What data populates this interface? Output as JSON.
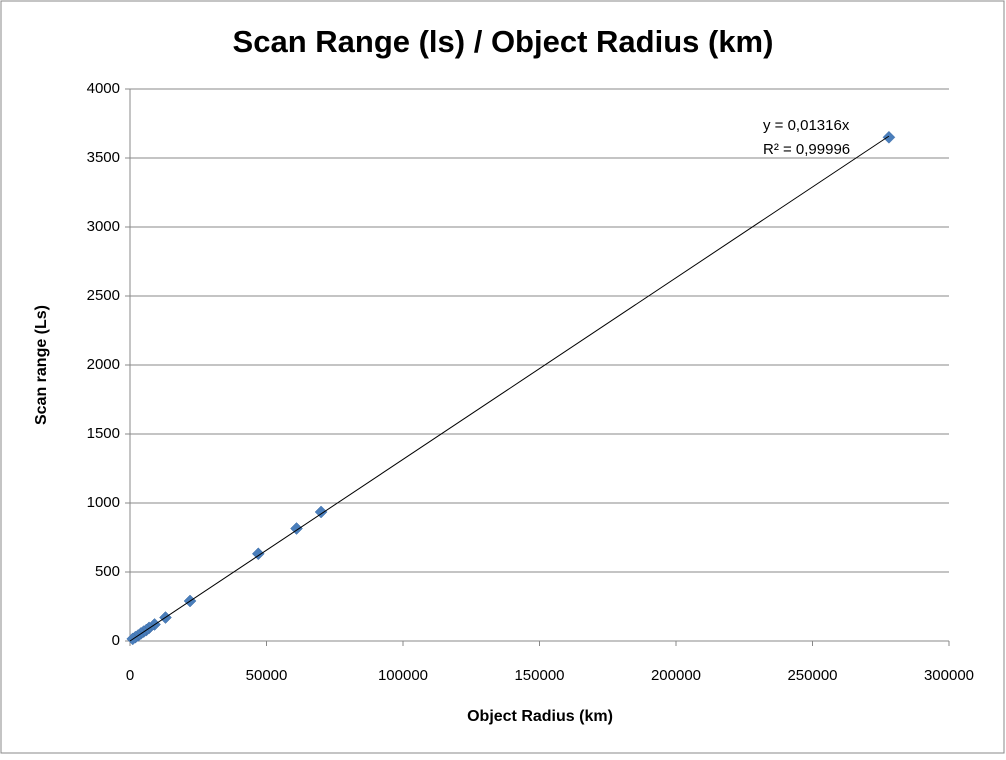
{
  "chart_data": {
    "type": "scatter",
    "title": "Scan Range (ls) / Object Radius (km)",
    "x_label": "Object Radius (km)",
    "y_label": "Scan range (Ls)",
    "series": [
      {
        "name": "Scan range",
        "color": "#4a7ebb",
        "x": [
          278000,
          70000,
          61000,
          47000,
          22000,
          13000,
          9000,
          7000,
          6000,
          5000,
          4000,
          3000,
          2000,
          1000
        ],
        "values": [
          3650,
          935,
          815,
          632,
          290,
          170,
          120,
          95,
          80,
          68,
          55,
          40,
          28,
          15
        ]
      }
    ],
    "trendline": {
      "slope": 0.01316,
      "equation": "y = 0,01316x",
      "r_squared": "R² = 0,99996"
    },
    "xlim": [
      0,
      300000
    ],
    "xticks": [
      0,
      50000,
      100000,
      150000,
      200000,
      250000,
      300000
    ],
    "ylim": [
      0,
      4000
    ],
    "yticks": [
      0,
      500,
      1000,
      1500,
      2000,
      2500,
      3000,
      3500,
      4000
    ],
    "grid": true
  }
}
